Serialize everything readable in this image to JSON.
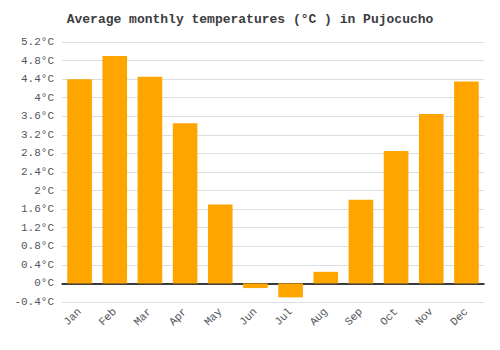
{
  "chart_data": {
    "type": "bar",
    "title": "Average monthly temperatures (°C ) in Pujocucho",
    "categories": [
      "Jan",
      "Feb",
      "Mar",
      "Apr",
      "May",
      "Jun",
      "Jul",
      "Aug",
      "Sep",
      "Oct",
      "Nov",
      "Dec"
    ],
    "values": [
      4.4,
      4.9,
      4.45,
      3.45,
      1.7,
      -0.1,
      -0.3,
      0.25,
      1.8,
      2.85,
      3.65,
      4.35
    ],
    "color": "#FFA500",
    "ylim": [
      -0.4,
      5.2
    ],
    "yticks": [
      {
        "value": -0.4,
        "label": "-0.4°C"
      },
      {
        "value": 0,
        "label": "0°C"
      },
      {
        "value": 0.4,
        "label": "0.4°C"
      },
      {
        "value": 0.8,
        "label": "0.8°C"
      },
      {
        "value": 1.2,
        "label": "1.2°C"
      },
      {
        "value": 1.6,
        "label": "1.6°C"
      },
      {
        "value": 2.0,
        "label": "2°C"
      },
      {
        "value": 2.4,
        "label": "2.4°C"
      },
      {
        "value": 2.8,
        "label": "2.8°C"
      },
      {
        "value": 3.2,
        "label": "3.2°C"
      },
      {
        "value": 3.6,
        "label": "3.6°C"
      },
      {
        "value": 4.0,
        "label": "4°C"
      },
      {
        "value": 4.4,
        "label": "4.4°C"
      },
      {
        "value": 4.8,
        "label": "4.8°C"
      },
      {
        "value": 5.2,
        "label": "5.2°C"
      }
    ],
    "grid": true
  }
}
